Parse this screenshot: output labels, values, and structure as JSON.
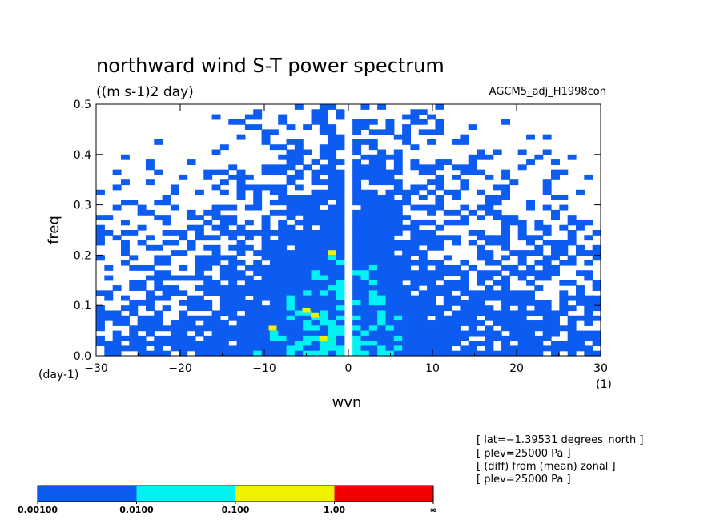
{
  "chart_data": {
    "type": "heatmap",
    "title": "northward wind S-T power spectrum",
    "subtitle": "((m s-1)2 day)",
    "experiment": "AGCM5_adj_H1998con",
    "xlabel": "wvn",
    "ylabel": "freq",
    "x_unit": "(1)",
    "y_unit": "(day-1)",
    "xlim": [
      -30,
      30
    ],
    "ylim": [
      0.0,
      0.5
    ],
    "x_ticks": [
      "−30",
      "−20",
      "−10",
      "0",
      "10",
      "20",
      "30"
    ],
    "y_ticks": [
      "0.0",
      "0.1",
      "0.2",
      "0.3",
      "0.4",
      "0.5"
    ],
    "scale": "log",
    "levels": [
      {
        "from": "0.00100",
        "to": "0.0100",
        "color": "#0c5cf2"
      },
      {
        "from": "0.0100",
        "to": "0.100",
        "color": "#00f2f2"
      },
      {
        "from": "0.100",
        "to": "1.00",
        "color": "#f2f200"
      },
      {
        "from": "1.00",
        "to": "∞",
        "color": "#f20000"
      }
    ],
    "colorbar_labels": [
      "0.00100",
      "0.0100",
      "0.100",
      "1.00",
      "∞"
    ],
    "colorbar_values": [
      0.001,
      0.01,
      0.1,
      1,
      null
    ],
    "series": [
      {
        "name": "",
        "notes": "approximate field: mostly 0.001–0.01 everywhere, 0.01–0.1 concentrated at low frequency near wvn −10..10, isolated 0.1–1 cells near wvn −6..−2, freq 0.03–0.2; zero/undefined column at wvn 0",
        "x": [
          -9,
          -5,
          -4,
          -3,
          -2
        ],
        "y": [
          0.055,
          0.09,
          0.08,
          0.035,
          0.205
        ],
        "values": [
          0.15,
          0.2,
          0.15,
          0.12,
          0.11
        ]
      }
    ],
    "info": [
      "[ lat=−1.39531 degrees_north ]",
      "[ plev=25000 Pa ]",
      "[ (diff) from (mean) zonal ]",
      "[ plev=25000 Pa ]"
    ],
    "grid": false
  }
}
